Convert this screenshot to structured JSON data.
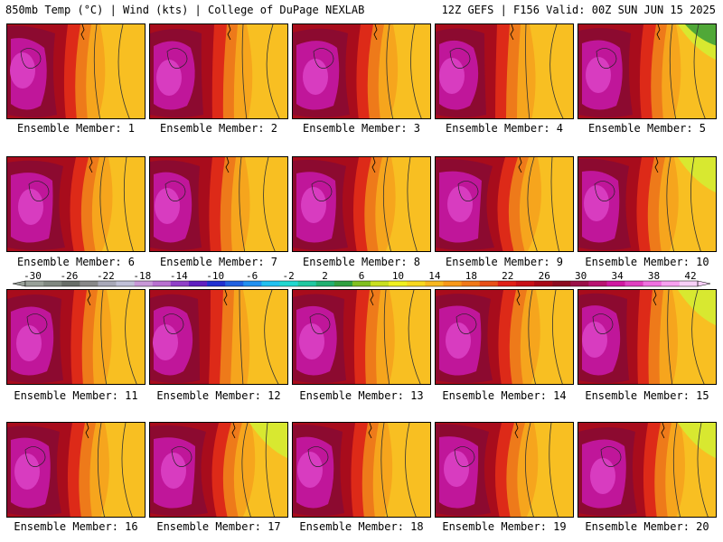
{
  "header": {
    "left": "850mb Temp (°C) | Wind (kts) | College of DuPage NEXLAB",
    "right": "12Z GEFS | F156 Valid: 00Z SUN JUN 15 2025"
  },
  "panels": [
    {
      "label": "Ensemble Member: 1"
    },
    {
      "label": "Ensemble Member: 2"
    },
    {
      "label": "Ensemble Member: 3"
    },
    {
      "label": "Ensemble Member: 4"
    },
    {
      "label": "Ensemble Member: 5"
    },
    {
      "label": "Ensemble Member: 6"
    },
    {
      "label": "Ensemble Member: 7"
    },
    {
      "label": "Ensemble Member: 8"
    },
    {
      "label": "Ensemble Member: 9"
    },
    {
      "label": "Ensemble Member: 10"
    },
    {
      "label": "Ensemble Member: 11"
    },
    {
      "label": "Ensemble Member: 12"
    },
    {
      "label": "Ensemble Member: 13"
    },
    {
      "label": "Ensemble Member: 14"
    },
    {
      "label": "Ensemble Member: 15"
    },
    {
      "label": "Ensemble Member: 16"
    },
    {
      "label": "Ensemble Member: 17"
    },
    {
      "label": "Ensemble Member: 18"
    },
    {
      "label": "Ensemble Member: 19"
    },
    {
      "label": "Ensemble Member: 20"
    }
  ],
  "colorbar": {
    "labels": [
      "-30",
      "-26",
      "-22",
      "-18",
      "-14",
      "-10",
      "-6",
      "-2",
      "2",
      "6",
      "10",
      "14",
      "18",
      "22",
      "26",
      "30",
      "34",
      "38",
      "42"
    ],
    "colors": [
      "#98a098",
      "#808880",
      "#686e68",
      "#888888",
      "#a8a8b8",
      "#c0c0d8",
      "#c898d8",
      "#b870d0",
      "#9040c8",
      "#6020c0",
      "#2030d0",
      "#2060e0",
      "#2090f0",
      "#20c0f0",
      "#20d8d0",
      "#20c8a0",
      "#20b070",
      "#30a040",
      "#80c020",
      "#c8e020",
      "#f0f020",
      "#f8d820",
      "#f8b820",
      "#f89818",
      "#f07818",
      "#e85018",
      "#e02018",
      "#c81018",
      "#a80818",
      "#8c0a20",
      "#9a1048",
      "#b81470",
      "#d018a0",
      "#e040c0",
      "#f070e0",
      "#f8a0f0",
      "#f8d0f8"
    ]
  }
}
